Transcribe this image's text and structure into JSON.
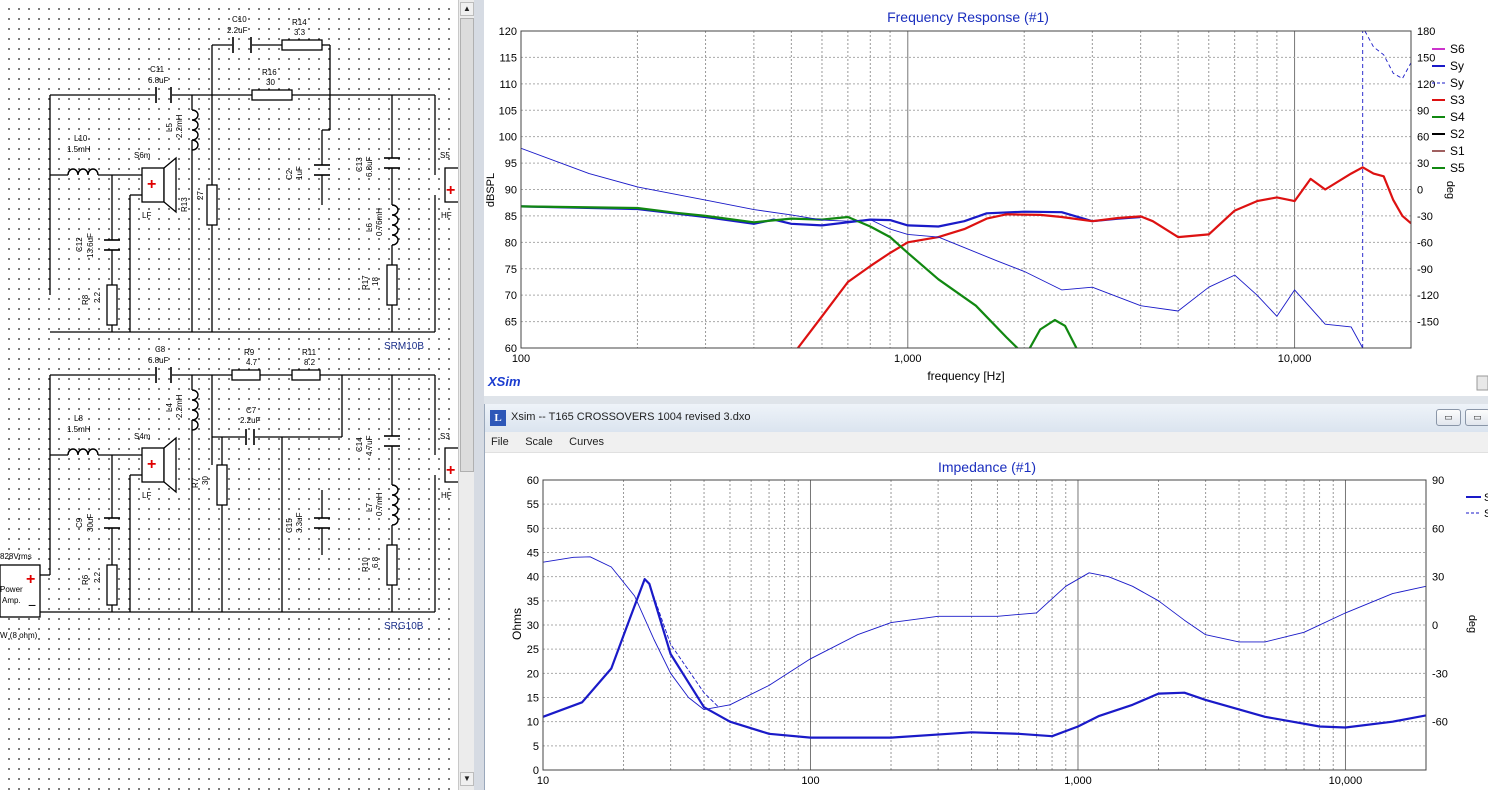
{
  "schematic": {
    "top_network": "SRM10B",
    "bottom_network": "SRG10B",
    "components_top": [
      {
        "ref": "C10",
        "value": "2.2uF"
      },
      {
        "ref": "R14",
        "value": "3.3"
      },
      {
        "ref": "C11",
        "value": "6.8uF"
      },
      {
        "ref": "R16",
        "value": "30"
      },
      {
        "ref": "L10",
        "value": "1.5mH"
      },
      {
        "ref": "L5",
        "value": "2.2mH"
      },
      {
        "ref": "C2",
        "value": "1uF"
      },
      {
        "ref": "C13",
        "value": "6.8uF"
      },
      {
        "ref": "R13",
        "value": "27"
      },
      {
        "ref": "C12",
        "value": "13.6uF"
      },
      {
        "ref": "L6",
        "value": "0.76mH"
      },
      {
        "ref": "R8",
        "value": "2.2"
      },
      {
        "ref": "R17",
        "value": "18"
      }
    ],
    "components_bottom": [
      {
        "ref": "C8",
        "value": "6.8uF"
      },
      {
        "ref": "R9",
        "value": "4.7"
      },
      {
        "ref": "R11",
        "value": "8.2"
      },
      {
        "ref": "L8",
        "value": "1.5mH"
      },
      {
        "ref": "L4",
        "value": "2.2mH"
      },
      {
        "ref": "C7",
        "value": "2.2uF"
      },
      {
        "ref": "C14",
        "value": "4.7uF"
      },
      {
        "ref": "R7",
        "value": "30"
      },
      {
        "ref": "C9",
        "value": "30uF"
      },
      {
        "ref": "C15",
        "value": "3.3uF"
      },
      {
        "ref": "L7",
        "value": "0.7mH"
      },
      {
        "ref": "R6",
        "value": "2.2"
      },
      {
        "ref": "R10",
        "value": "6.8"
      }
    ],
    "drivers": {
      "s6m": "S6m",
      "s5": "S5",
      "s4m": "S4m",
      "s3": "S3",
      "lf": "LF",
      "hf": "HF"
    },
    "amp": {
      "voltage": "828Vrms",
      "label1": "Power",
      "label2": "Amp.",
      "load": "W (8 ohm)"
    }
  },
  "frequency_response": {
    "title": "Frequency Response (#1)",
    "brand": "XSim",
    "legend": [
      "S6",
      "Sy",
      "Sy",
      "S3",
      "S4",
      "S2",
      "S1",
      "S5"
    ],
    "legend_colors": [
      "#cc33cc",
      "#1a1ac8",
      "#1a1ac8",
      "#dd1111",
      "#118811",
      "#000000",
      "#a06060",
      "#118811"
    ],
    "chart_data": {
      "type": "line",
      "title": "Frequency Response (#1)",
      "xlabel": "frequency [Hz]",
      "ylabel": "dBSPL",
      "y2label": "deg",
      "x_scale": "log",
      "xlim": [
        100,
        20000
      ],
      "ylim": [
        60,
        120
      ],
      "y2lim": [
        -180,
        180
      ],
      "x_ticks": [
        "100",
        "1,000",
        "10,000"
      ],
      "y_ticks": [
        60,
        65,
        70,
        75,
        80,
        85,
        90,
        95,
        100,
        105,
        110,
        115,
        120
      ],
      "y2_ticks": [
        -150,
        -120,
        -90,
        -60,
        -30,
        0,
        30,
        60,
        90,
        120,
        150,
        180
      ],
      "series": [
        {
          "color": "#1a1ac8",
          "width": 2.2,
          "points": [
            [
              100,
              86.8
            ],
            [
              200,
              86.3
            ],
            [
              300,
              84.8
            ],
            [
              400,
              83.5
            ],
            [
              450,
              84.3
            ],
            [
              500,
              83.5
            ],
            [
              600,
              83.2
            ],
            [
              700,
              83.8
            ],
            [
              800,
              84.3
            ],
            [
              900,
              84.2
            ],
            [
              1000,
              83.2
            ],
            [
              1200,
              83
            ],
            [
              1400,
              84
            ],
            [
              1600,
              85.5
            ],
            [
              2000,
              85.8
            ],
            [
              2500,
              85.7
            ],
            [
              3000,
              84
            ],
            [
              3500,
              84.5
            ],
            [
              4000,
              84.8
            ]
          ]
        },
        {
          "color": "#dd1111",
          "width": 2.2,
          "points": [
            [
              520,
              60
            ],
            [
              600,
              66
            ],
            [
              700,
              72.5
            ],
            [
              800,
              75.5
            ],
            [
              900,
              78
            ],
            [
              1000,
              80
            ],
            [
              1200,
              81
            ],
            [
              1400,
              82.5
            ],
            [
              1600,
              84.5
            ],
            [
              1800,
              85.3
            ],
            [
              2200,
              85.2
            ],
            [
              2500,
              84.8
            ],
            [
              3000,
              84
            ],
            [
              3500,
              84.6
            ],
            [
              4000,
              84.9
            ],
            [
              4300,
              84
            ],
            [
              5000,
              81
            ],
            [
              6000,
              81.5
            ],
            [
              7000,
              86
            ],
            [
              8000,
              87.8
            ],
            [
              9000,
              88.5
            ],
            [
              10000,
              87.8
            ],
            [
              11000,
              92
            ],
            [
              12000,
              90
            ],
            [
              14000,
              93
            ],
            [
              15000,
              94.2
            ],
            [
              16000,
              93
            ],
            [
              17000,
              92.5
            ],
            [
              18000,
              88
            ],
            [
              19000,
              85
            ],
            [
              20000,
              83.6
            ]
          ]
        },
        {
          "color": "#118811",
          "width": 2.2,
          "points": [
            [
              100,
              86.8
            ],
            [
              200,
              86.5
            ],
            [
              250,
              85.6
            ],
            [
              300,
              85
            ],
            [
              400,
              83.8
            ],
            [
              500,
              84.5
            ],
            [
              600,
              84.3
            ],
            [
              700,
              84.8
            ],
            [
              800,
              83
            ],
            [
              900,
              81
            ],
            [
              1000,
              78
            ],
            [
              1200,
              73
            ],
            [
              1500,
              68
            ],
            [
              1800,
              62
            ],
            [
              1950,
              59.5
            ]
          ]
        },
        {
          "color": "#118811",
          "width": 2.2,
          "points": [
            [
              2050,
              59.5
            ],
            [
              2200,
              63.5
            ],
            [
              2400,
              65.3
            ],
            [
              2550,
              64.2
            ],
            [
              2750,
              59.5
            ]
          ]
        },
        {
          "color": "#1a1ac8",
          "width": 0.9,
          "points": [
            [
              100,
              97.8
            ],
            [
              150,
              93
            ],
            [
              200,
              90.5
            ],
            [
              300,
              88
            ],
            [
              400,
              86.2
            ],
            [
              500,
              85.2
            ],
            [
              600,
              84.2
            ],
            [
              700,
              84
            ],
            [
              800,
              84.3
            ],
            [
              900,
              82.5
            ],
            [
              1000,
              81.5
            ],
            [
              1200,
              81
            ],
            [
              1400,
              79
            ],
            [
              1700,
              76.5
            ],
            [
              2000,
              74.5
            ],
            [
              2500,
              71
            ],
            [
              3000,
              71.5
            ],
            [
              4000,
              68
            ],
            [
              5000,
              67
            ],
            [
              6000,
              71.5
            ],
            [
              7000,
              73.8
            ],
            [
              8000,
              70
            ],
            [
              9000,
              66
            ],
            [
              10000,
              71
            ],
            [
              12000,
              64.5
            ],
            [
              14000,
              64
            ],
            [
              15000,
              60
            ]
          ]
        },
        {
          "color": "#1a1ac8",
          "width": 0.9,
          "dash": "4,3",
          "points": [
            [
              15000,
              60
            ],
            [
              15000,
              120
            ]
          ]
        },
        {
          "color": "#1a1ac8",
          "width": 0.9,
          "dash": "4,3",
          "points": [
            [
              15200,
              120
            ],
            [
              16000,
              117
            ],
            [
              17000,
              115.5
            ],
            [
              18000,
              112
            ],
            [
              19000,
              111
            ],
            [
              20000,
              114
            ]
          ]
        }
      ]
    }
  },
  "impedance_window": {
    "title": "Xsim -- T165 CROSSOVERS 1004 revised 3.dxo",
    "menu": [
      "File",
      "Scale",
      "Curves"
    ],
    "chart_title": "Impedance (#1)",
    "legend": [
      "S",
      "S"
    ],
    "chart_data": {
      "type": "line",
      "title": "Impedance (#1)",
      "ylabel": "Ohms",
      "y2label": "deg",
      "x_scale": "log",
      "xlim": [
        10,
        20000
      ],
      "ylim": [
        0,
        60
      ],
      "y2lim": [
        -90,
        90
      ],
      "x_ticks": [
        "10",
        "100",
        "1,000",
        "10,000"
      ],
      "y_ticks": [
        0,
        5,
        10,
        15,
        20,
        25,
        30,
        35,
        40,
        45,
        50,
        55,
        60
      ],
      "y2_ticks": [
        -60,
        -30,
        0,
        30,
        60,
        90
      ],
      "series": [
        {
          "color": "#1a1ac8",
          "width": 2.2,
          "points": [
            [
              10,
              11
            ],
            [
              14,
              14
            ],
            [
              18,
              21
            ],
            [
              21,
              31
            ],
            [
              24,
              39.5
            ],
            [
              25,
              38.5
            ],
            [
              30,
              24
            ],
            [
              40,
              13
            ],
            [
              50,
              10
            ],
            [
              70,
              7.5
            ],
            [
              100,
              6.7
            ],
            [
              200,
              6.7
            ],
            [
              400,
              7.8
            ],
            [
              600,
              7.5
            ],
            [
              800,
              7
            ],
            [
              1000,
              9
            ],
            [
              1200,
              11.2
            ],
            [
              1600,
              13.5
            ],
            [
              2000,
              15.8
            ],
            [
              2500,
              16
            ],
            [
              3000,
              14.5
            ],
            [
              5000,
              11
            ],
            [
              8000,
              9
            ],
            [
              10000,
              8.8
            ],
            [
              15000,
              10
            ],
            [
              20000,
              11.3
            ]
          ]
        },
        {
          "color": "#1a1ac8",
          "width": 0.9,
          "dash": "4,2",
          "points": [
            [
              25,
              38.5
            ],
            [
              30,
              26
            ],
            [
              40,
              16
            ],
            [
              45,
              13.2
            ]
          ]
        },
        {
          "color": "#1a1ac8",
          "width": 0.9,
          "points": [
            [
              10,
              43
            ],
            [
              13,
              44
            ],
            [
              15,
              44.1
            ],
            [
              18,
              42
            ],
            [
              22,
              36
            ],
            [
              26,
              27
            ],
            [
              30,
              20
            ],
            [
              35,
              15
            ],
            [
              40,
              12.5
            ],
            [
              50,
              13.5
            ],
            [
              70,
              17.5
            ],
            [
              100,
              23
            ],
            [
              150,
              28
            ],
            [
              200,
              30.5
            ],
            [
              300,
              31.8
            ],
            [
              500,
              31.8
            ],
            [
              700,
              32.5
            ],
            [
              900,
              38
            ],
            [
              1100,
              40.8
            ],
            [
              1300,
              40
            ],
            [
              1600,
              38
            ],
            [
              2000,
              35
            ],
            [
              2500,
              31
            ],
            [
              3000,
              28
            ],
            [
              4000,
              26.5
            ],
            [
              5000,
              26.5
            ],
            [
              7000,
              28.5
            ],
            [
              10000,
              32.5
            ],
            [
              15000,
              36.5
            ],
            [
              20000,
              38
            ]
          ]
        }
      ]
    }
  }
}
